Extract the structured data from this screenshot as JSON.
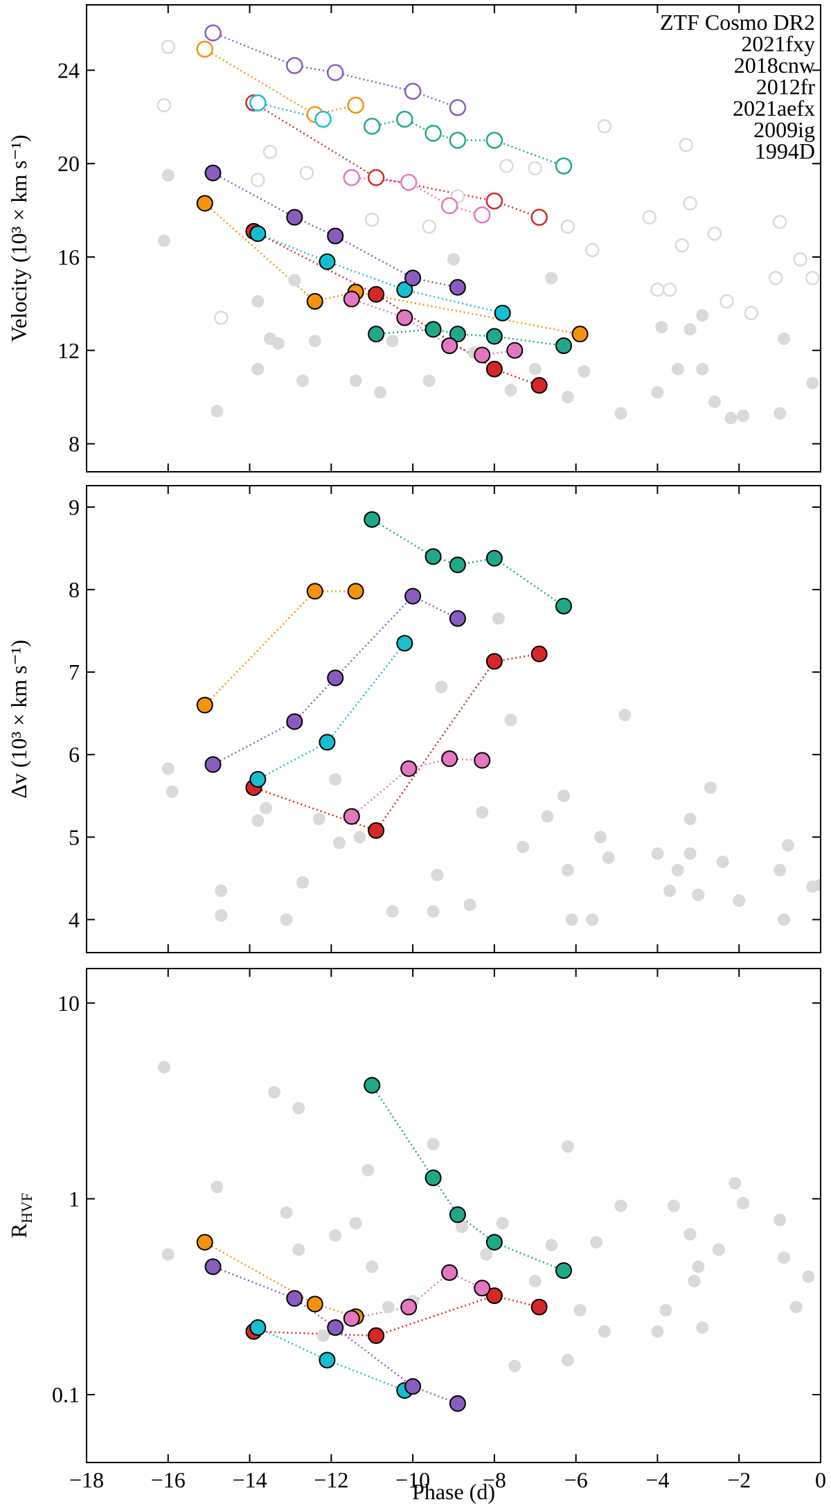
{
  "chart_data": [
    {
      "type": "scatter",
      "ylabel": "Velocity (10³ × km s⁻¹)",
      "xlim": [
        -18,
        0
      ],
      "xticks": [
        -18,
        -16,
        -14,
        -12,
        -10,
        -8,
        -6,
        -4,
        -2,
        0
      ],
      "ylim": [
        6.8,
        26.8
      ],
      "yticks": [
        8,
        12,
        16,
        20,
        24
      ],
      "legend": "upper right",
      "series": [
        {
          "name": "ZTF Cosmo DR2",
          "color": "#d9d9d9",
          "marker": "filled",
          "x": [
            -16,
            -16.1,
            -14.8,
            -13.8,
            -13.5,
            -13.3,
            -12.7,
            -12.4,
            -11.4,
            -10.8,
            -10.5,
            -9.6,
            -8.5,
            -7.6,
            -7,
            -6.2,
            -5.8,
            -4.9,
            -4,
            -3.5,
            -3.2,
            -2.9,
            -2.6,
            -2.2,
            -1.9,
            -1,
            -0.9,
            -0.2,
            -3.9,
            -2.9,
            -13.8,
            -12.9,
            -9,
            -6.6
          ],
          "values": [
            19.5,
            16.7,
            9.4,
            11.2,
            12.5,
            12.3,
            10.7,
            12.4,
            10.7,
            10.2,
            12.4,
            10.7,
            11.9,
            10.3,
            11.2,
            10.0,
            11.1,
            9.3,
            10.2,
            11.2,
            12.9,
            11.2,
            9.8,
            9.1,
            9.2,
            9.3,
            12.5,
            10.6,
            13.0,
            13.5,
            14.1,
            15.0,
            15.9,
            15.1
          ]
        },
        {
          "color": "#d9d9d9",
          "marker": "open",
          "x": [
            -16,
            -16.1,
            -14.7,
            -13.8,
            -13.5,
            -12.6,
            -11,
            -9.6,
            -8.9,
            -7.7,
            -7,
            -6.2,
            -5.3,
            -5.6,
            -4.2,
            -3.3,
            -3.2,
            -3.4,
            -2.6,
            -1,
            -0.2,
            -0.5,
            -1.1,
            -4,
            -3.7,
            -2.3,
            -1.7
          ],
          "values": [
            25.0,
            22.5,
            13.4,
            19.3,
            20.5,
            19.6,
            17.6,
            17.3,
            18.6,
            19.9,
            19.8,
            17.3,
            21.6,
            16.3,
            17.7,
            20.8,
            18.3,
            16.5,
            17.0,
            17.5,
            15.1,
            15.9,
            15.1,
            14.6,
            14.6,
            14.1,
            13.6
          ]
        },
        {
          "name": "2021fxy",
          "color": "#d62728",
          "marker": "filled",
          "line": "dotted",
          "x": [
            -13.9,
            -10.9,
            -8,
            -6.9
          ],
          "values": [
            17.1,
            14.4,
            11.2,
            10.5
          ]
        },
        {
          "color": "#d62728",
          "marker": "open",
          "line": "dotted",
          "x": [
            -13.9,
            -10.9,
            -8,
            -6.9
          ],
          "values": [
            22.6,
            19.4,
            18.4,
            17.7
          ]
        },
        {
          "name": "2018cnw",
          "color": "#f5930a",
          "marker": "filled",
          "line": "dotted",
          "x": [
            -15.1,
            -12.4,
            -11.4,
            -5.9
          ],
          "values": [
            18.3,
            14.1,
            14.5,
            12.7
          ]
        },
        {
          "color": "#f5930a",
          "marker": "open",
          "line": "dotted",
          "x": [
            -15.1,
            -12.4,
            -11.4
          ],
          "values": [
            24.9,
            22.1,
            22.5
          ]
        },
        {
          "name": "2012fr",
          "color": "#1fa98a",
          "marker": "filled",
          "line": "dotted",
          "x": [
            -10.9,
            -9.5,
            -8.9,
            -8,
            -6.3
          ],
          "values": [
            12.7,
            12.9,
            12.7,
            12.6,
            12.2
          ]
        },
        {
          "color": "#1fa98a",
          "marker": "open",
          "line": "dotted",
          "x": [
            -11,
            -10.2,
            -9.5,
            -8.9,
            -8,
            -6.3
          ],
          "values": [
            21.6,
            21.9,
            21.3,
            21.0,
            21.0,
            19.9
          ]
        },
        {
          "name": "2021aefx",
          "color": "#17becf",
          "marker": "filled",
          "line": "dotted",
          "x": [
            -13.8,
            -12.1,
            -10.2,
            -7.8
          ],
          "values": [
            17.0,
            15.8,
            14.6,
            13.6
          ]
        },
        {
          "color": "#17becf",
          "marker": "open",
          "line": "dotted",
          "x": [
            -13.8,
            -12.2
          ],
          "values": [
            22.6,
            21.9
          ]
        },
        {
          "name": "2009ig",
          "color": "#8a5cc0",
          "marker": "filled",
          "line": "dotted",
          "x": [
            -14.9,
            -12.9,
            -11.9,
            -10,
            -8.9
          ],
          "values": [
            19.6,
            17.7,
            16.9,
            15.1,
            14.7
          ]
        },
        {
          "color": "#8a5cc0",
          "marker": "open",
          "line": "dotted",
          "x": [
            -14.9,
            -12.9,
            -11.9,
            -10,
            -8.9
          ],
          "values": [
            25.6,
            24.2,
            23.9,
            23.1,
            22.4
          ]
        },
        {
          "name": "1994D",
          "color": "#e377c2",
          "marker": "filled",
          "line": "dotted",
          "x": [
            -11.5,
            -10.2,
            -9.1,
            -8.3,
            -7.5
          ],
          "values": [
            14.2,
            13.4,
            12.2,
            11.8,
            12.0
          ]
        },
        {
          "color": "#e377c2",
          "marker": "open",
          "line": "dotted",
          "x": [
            -11.5,
            -10.1,
            -9.1,
            -8.3
          ],
          "values": [
            19.4,
            19.2,
            18.2,
            17.8
          ]
        }
      ]
    },
    {
      "type": "scatter",
      "ylabel": "Δv (10³ × km s⁻¹)",
      "xlim": [
        -18,
        0
      ],
      "xticks": [
        -18,
        -16,
        -14,
        -12,
        -10,
        -8,
        -6,
        -4,
        -2,
        0
      ],
      "ylim": [
        3.6,
        9.26
      ],
      "yticks": [
        4,
        5,
        6,
        7,
        8,
        9
      ],
      "series": [
        {
          "color": "#d9d9d9",
          "marker": "filled",
          "x": [
            -16,
            -15.9,
            -14.7,
            -14.7,
            -13.8,
            -13.6,
            -13.1,
            -12.7,
            -12.3,
            -11.9,
            -11.8,
            -11.3,
            -10.5,
            -9.5,
            -9.4,
            -9.3,
            -8.6,
            -8.3,
            -7.9,
            -7.6,
            -7.3,
            -6.7,
            -6.3,
            -6.2,
            -6.1,
            -5.6,
            -5.4,
            -5.2,
            -4.8,
            -4,
            -3.7,
            -3.5,
            -3.2,
            -3.2,
            -3.0,
            -2.7,
            -2.4,
            -2.0,
            -1,
            -0.9,
            -0.8,
            -0.2,
            0
          ],
          "values": [
            5.83,
            5.55,
            4.35,
            4.05,
            5.2,
            5.35,
            4.0,
            4.45,
            5.22,
            5.7,
            4.93,
            5.0,
            4.1,
            4.1,
            4.54,
            6.82,
            4.18,
            5.3,
            7.65,
            6.42,
            4.88,
            5.25,
            5.5,
            4.6,
            4.0,
            4.0,
            5.0,
            4.75,
            6.48,
            4.8,
            4.35,
            4.6,
            5.22,
            4.8,
            4.3,
            5.6,
            4.7,
            4.23,
            4.6,
            4.0,
            4.9,
            4.4,
            4.42
          ]
        },
        {
          "color": "#d62728",
          "marker": "filled",
          "line": "dotted",
          "x": [
            -13.9,
            -10.9,
            -8,
            -6.9
          ],
          "values": [
            5.6,
            5.08,
            7.13,
            7.22
          ]
        },
        {
          "color": "#f5930a",
          "marker": "filled",
          "line": "dotted",
          "x": [
            -15.1,
            -12.4,
            -11.4
          ],
          "values": [
            6.6,
            7.98,
            7.98
          ]
        },
        {
          "color": "#1fa98a",
          "marker": "filled",
          "line": "dotted",
          "x": [
            -11,
            -9.5,
            -8.9,
            -8,
            -6.3
          ],
          "values": [
            8.85,
            8.4,
            8.3,
            8.38,
            7.8
          ]
        },
        {
          "color": "#17becf",
          "marker": "filled",
          "line": "dotted",
          "x": [
            -13.8,
            -12.1,
            -10.2
          ],
          "values": [
            5.7,
            6.15,
            7.35
          ]
        },
        {
          "color": "#8a5cc0",
          "marker": "filled",
          "line": "dotted",
          "x": [
            -14.9,
            -12.9,
            -11.9,
            -10,
            -8.9
          ],
          "values": [
            5.88,
            6.4,
            6.93,
            7.92,
            7.65
          ]
        },
        {
          "color": "#e377c2",
          "marker": "filled",
          "line": "dotted",
          "x": [
            -11.5,
            -10.1,
            -9.1,
            -8.3
          ],
          "values": [
            5.25,
            5.83,
            5.95,
            5.93
          ]
        }
      ]
    },
    {
      "type": "scatter",
      "ylabel": "R",
      "ylabel_sub": "HVF",
      "xlabel": "Phase (d)",
      "yscale": "log",
      "xlim": [
        -18,
        0
      ],
      "xticks": [
        {
          "value": -18,
          "label": "−18"
        },
        {
          "value": -16,
          "label": "−16"
        },
        {
          "value": -14,
          "label": "−14"
        },
        {
          "value": -12,
          "label": "−12"
        },
        {
          "value": -10,
          "label": "−10"
        },
        {
          "value": -8,
          "label": "−8"
        },
        {
          "value": -6,
          "label": "−6"
        },
        {
          "value": -4,
          "label": "−4"
        },
        {
          "value": -2,
          "label": "−2"
        },
        0
      ],
      "ylim": [
        0.045,
        15
      ],
      "yticks": [
        0.1,
        1,
        10
      ],
      "series": [
        {
          "color": "#d9d9d9",
          "marker": "filled",
          "x": [
            -16.1,
            -16,
            -14.8,
            -13.4,
            -13.1,
            -12.8,
            -12.8,
            -12.2,
            -11.9,
            -11.4,
            -11.1,
            -11,
            -10.6,
            -10,
            -9.5,
            -8.8,
            -8.2,
            -7.8,
            -7.5,
            -7,
            -6.6,
            -6.2,
            -6.2,
            -5.9,
            -5.5,
            -5.3,
            -4.9,
            -4,
            -3.8,
            -3.6,
            -3.2,
            -3.1,
            -3.0,
            -2.9,
            -2.5,
            -2.1,
            -1.9,
            -1,
            -0.9,
            -0.6,
            -0.3
          ],
          "values": [
            4.7,
            0.52,
            1.15,
            3.5,
            0.85,
            2.9,
            0.55,
            0.2,
            0.65,
            0.75,
            1.4,
            0.45,
            0.28,
            0.3,
            1.9,
            0.72,
            0.52,
            0.75,
            0.14,
            0.38,
            0.58,
            1.85,
            0.15,
            0.27,
            0.6,
            0.21,
            0.92,
            0.21,
            0.27,
            0.92,
            0.66,
            0.38,
            0.45,
            0.22,
            0.55,
            1.2,
            0.95,
            0.78,
            0.5,
            0.28,
            0.4
          ]
        },
        {
          "color": "#d62728",
          "marker": "filled",
          "line": "dotted",
          "x": [
            -13.9,
            -10.9,
            -8,
            -6.9
          ],
          "values": [
            0.21,
            0.2,
            0.32,
            0.28
          ]
        },
        {
          "color": "#f5930a",
          "marker": "filled",
          "line": "dotted",
          "x": [
            -15.1,
            -12.4,
            -11.4
          ],
          "values": [
            0.6,
            0.29,
            0.25
          ]
        },
        {
          "color": "#1fa98a",
          "marker": "filled",
          "line": "dotted",
          "x": [
            -11,
            -9.5,
            -8.9,
            -8,
            -6.3
          ],
          "values": [
            3.8,
            1.28,
            0.83,
            0.6,
            0.43
          ]
        },
        {
          "color": "#17becf",
          "marker": "filled",
          "line": "dotted",
          "x": [
            -13.8,
            -12.1,
            -10.2
          ],
          "values": [
            0.22,
            0.15,
            0.105
          ]
        },
        {
          "color": "#8a5cc0",
          "marker": "filled",
          "line": "dotted",
          "x": [
            -14.9,
            -12.9,
            -11.9,
            -10,
            -8.9
          ],
          "values": [
            0.45,
            0.31,
            0.22,
            0.11,
            0.09
          ]
        },
        {
          "color": "#e377c2",
          "marker": "filled",
          "line": "dotted",
          "x": [
            -11.5,
            -10.1,
            -9.1,
            -8.3
          ],
          "values": [
            0.245,
            0.28,
            0.42,
            0.35
          ]
        }
      ]
    }
  ]
}
